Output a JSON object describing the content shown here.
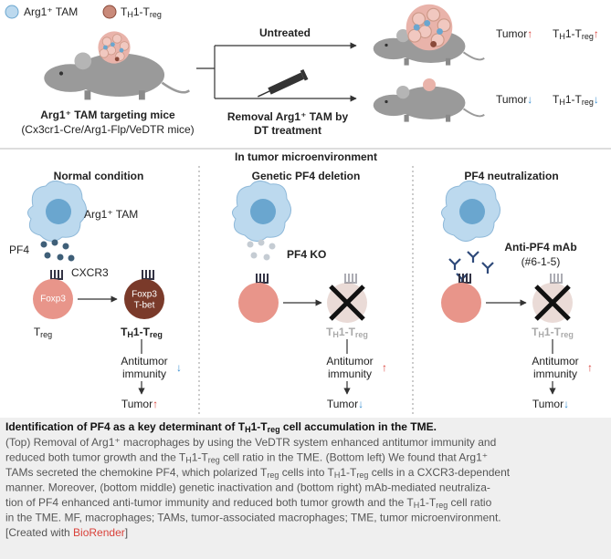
{
  "legend": {
    "tam": "Arg1⁺ TAM",
    "th1": [
      "T",
      "H",
      "1-T",
      "reg"
    ]
  },
  "top": {
    "mouse_label": "Arg1⁺ TAM targeting mice",
    "mouse_strain": "(Cx3cr1-Cre/Arg1-Flp/VeDTR mice)",
    "untreated": "Untreated",
    "treatment": [
      "Removal Arg1⁺ TAM by",
      "DT treatment"
    ],
    "outcomes": [
      {
        "tumor": "Tumor",
        "tumor_arrow": "↑",
        "cell": [
          "T",
          "H",
          "1-T",
          "reg"
        ],
        "cell_arrow": "↑"
      },
      {
        "tumor": "Tumor",
        "tumor_arrow": "↓",
        "cell": [
          "T",
          "H",
          "1-T",
          "reg"
        ],
        "cell_arrow": "↓"
      }
    ]
  },
  "bottom": {
    "heading": "In tumor microenvironment",
    "panels": [
      {
        "title": "Normal condition",
        "tam": "Arg1⁺ TAM",
        "pf4": "PF4",
        "receptor": "CXCR3",
        "treg_marker": "Foxp3",
        "treg": [
          "T",
          "reg"
        ],
        "th1_markers": [
          "Foxp3",
          "T-bet"
        ],
        "th1": [
          "T",
          "H",
          "1-T",
          "reg"
        ],
        "immunity": [
          "Antitumor",
          "immunity"
        ],
        "immunity_arrow": "↓",
        "tumor": "Tumor",
        "tumor_arrow": "↑"
      },
      {
        "title": "Genetic PF4 deletion",
        "agent": [
          "PF4 KO"
        ],
        "th1": [
          "T",
          "H",
          "1-T",
          "reg"
        ],
        "immunity": [
          "Antitumor",
          "immunity"
        ],
        "immunity_arrow": "↑",
        "tumor": "Tumor",
        "tumor_arrow": "↓"
      },
      {
        "title": "PF4 neutralization",
        "agent": [
          "Anti-PF4 mAb",
          "(#6-1-5)"
        ],
        "th1": [
          "T",
          "H",
          "1-T",
          "reg"
        ],
        "immunity": [
          "Antitumor",
          "immunity"
        ],
        "immunity_arrow": "↑",
        "tumor": "Tumor",
        "tumor_arrow": "↓"
      }
    ]
  },
  "caption": {
    "title": [
      "Identification of PF4 as a key determinant of T",
      "H",
      "1-T",
      "reg",
      " cell accumulation in the TME."
    ],
    "lines": [
      "(Top) Removal of Arg1⁺ macrophages by using the VeDTR system enhanced antitumor immunity and",
      [
        "reduced both tumor growth and the T",
        "H",
        "1-T",
        "reg",
        " cell ratio in the TME. (Bottom left) We found that Arg1⁺"
      ],
      [
        "TAMs secreted the chemokine PF4, which polarized T",
        "reg",
        " cells into T",
        "H",
        "1-T",
        "reg",
        " cells in a CXCR3-dependent"
      ],
      "manner. Moreover, (bottom middle) genetic inactivation and (bottom right) mAb-mediated neutraliza-",
      [
        "tion of PF4 enhanced anti-tumor immunity and reduced both tumor growth and the T",
        "H",
        "1-T",
        "reg",
        " cell ratio"
      ],
      "in the TME. MF, macrophages; TAMs, tumor-associated macrophages; TME, tumor microenvironment."
    ],
    "credit": {
      "prefix": "[Created with ",
      "link": "BioRender",
      "suffix": "]"
    }
  }
}
